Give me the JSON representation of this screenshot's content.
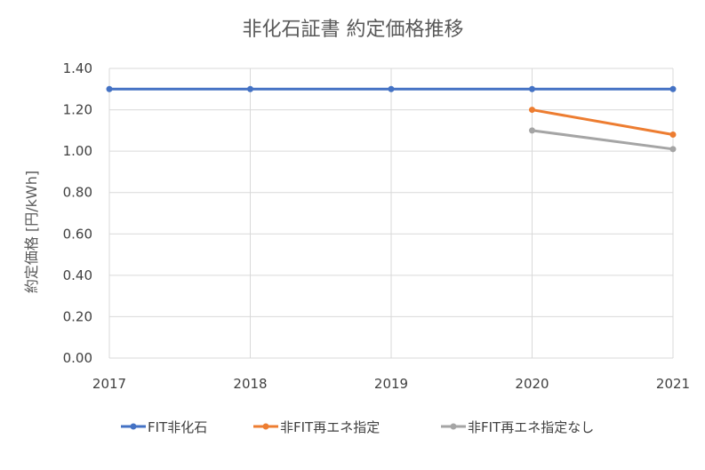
{
  "chart_data": {
    "type": "line",
    "title": "非化石証書 約定価格推移",
    "xlabel": "",
    "ylabel": "約定価格 [円/kWh]",
    "x": [
      "2017",
      "2018",
      "2019",
      "2020",
      "2021"
    ],
    "ylim": [
      0,
      1.4
    ],
    "yticks": [
      "0.00",
      "0.20",
      "0.40",
      "0.60",
      "0.80",
      "1.00",
      "1.20",
      "1.40"
    ],
    "grid": true,
    "legend_position": "bottom",
    "series": [
      {
        "name": "FIT非化石",
        "color": "#4472C4",
        "values": [
          1.3,
          1.3,
          1.3,
          1.3,
          1.3
        ]
      },
      {
        "name": "非FIT再エネ指定",
        "color": "#ED7D31",
        "values": [
          null,
          null,
          null,
          1.2,
          1.08
        ]
      },
      {
        "name": "非FIT再エネ指定なし",
        "color": "#A5A5A5",
        "values": [
          null,
          null,
          null,
          1.1,
          1.01
        ]
      }
    ]
  }
}
